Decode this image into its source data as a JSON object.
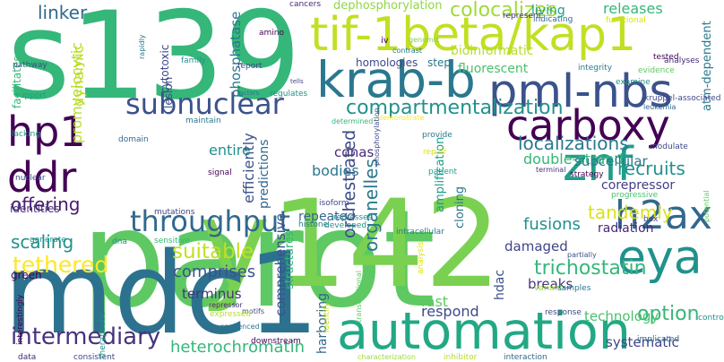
{
  "words": [
    {
      "text": "parot",
      "color": "#5ec962",
      "vertical": false
    },
    {
      "text": "s139",
      "color": "#35b779",
      "vertical": false
    },
    {
      "text": "y142",
      "color": "#7ad151",
      "vertical": false
    },
    {
      "text": "mdc1",
      "color": "#2c728e",
      "vertical": false
    },
    {
      "text": "tif-1beta/kap1",
      "color": "#c2df23",
      "vertical": false
    },
    {
      "text": "automation",
      "color": "#22a884",
      "vertical": false
    },
    {
      "text": "krab-b",
      "color": "#2a788e",
      "vertical": false
    },
    {
      "text": "pml-nbs",
      "color": "#3b528b",
      "vertical": false
    },
    {
      "text": "carboxy",
      "color": "#440154",
      "vertical": false
    },
    {
      "text": "znf",
      "color": "#1f9e89",
      "vertical": false
    },
    {
      "text": "eya",
      "color": "#21918c",
      "vertical": false
    },
    {
      "text": "h2ax",
      "color": "#31688e",
      "vertical": false
    },
    {
      "text": "hp1",
      "color": "#440154",
      "vertical": false
    },
    {
      "text": "ddr",
      "color": "#440154",
      "vertical": false
    },
    {
      "text": "throughput",
      "color": "#31688e",
      "vertical": false
    },
    {
      "text": "subnuclear",
      "color": "#3b528b",
      "vertical": false
    },
    {
      "text": "intermediary",
      "color": "#46337e",
      "vertical": false
    },
    {
      "text": "heterochromatin",
      "color": "#35b779",
      "vertical": false
    },
    {
      "text": "compartmentalization",
      "color": "#21918c",
      "vertical": false
    },
    {
      "text": "colocalizes",
      "color": "#9fda3a",
      "vertical": false
    },
    {
      "text": "linker",
      "color": "#31688e",
      "vertical": false
    },
    {
      "text": "dephosphorylation",
      "color": "#8fd744",
      "vertical": false
    },
    {
      "text": "living",
      "color": "#1f9e89",
      "vertical": false
    },
    {
      "text": "releases",
      "color": "#35b779",
      "vertical": false
    },
    {
      "text": "bioinformatic",
      "color": "#b5de2b",
      "vertical": false
    },
    {
      "text": "fluorescent",
      "color": "#4ac16d",
      "vertical": false
    },
    {
      "text": "homologies",
      "color": "#3e4989",
      "vertical": false
    },
    {
      "text": "step",
      "color": "#2a788e",
      "vertical": false
    },
    {
      "text": "localizations",
      "color": "#2a788e",
      "vertical": false
    },
    {
      "text": "double-strand",
      "color": "#35b779",
      "vertical": false
    },
    {
      "text": "subcellular",
      "color": "#2a788e",
      "vertical": false
    },
    {
      "text": "recruits",
      "color": "#21918c",
      "vertical": false
    },
    {
      "text": "corepressor",
      "color": "#433e85",
      "vertical": false
    },
    {
      "text": "tandemly",
      "color": "#d8e219",
      "vertical": false
    },
    {
      "text": "radiation",
      "color": "#482878",
      "vertical": false
    },
    {
      "text": "fusions",
      "color": "#21918c",
      "vertical": false
    },
    {
      "text": "trichostatin",
      "color": "#35b779",
      "vertical": false
    },
    {
      "text": "breaks",
      "color": "#46337e",
      "vertical": false
    },
    {
      "text": "option",
      "color": "#35b779",
      "vertical": false
    },
    {
      "text": "technology",
      "color": "#4ac16d",
      "vertical": false
    },
    {
      "text": "systematic",
      "color": "#414487",
      "vertical": false
    },
    {
      "text": "cdnas",
      "color": "#482878",
      "vertical": false
    },
    {
      "text": "bodies",
      "color": "#2a788e",
      "vertical": false
    },
    {
      "text": "fast",
      "color": "#5ec962",
      "vertical": false
    },
    {
      "text": "respond",
      "color": "#3e4989",
      "vertical": false
    },
    {
      "text": "damaged",
      "color": "#414487",
      "vertical": false
    },
    {
      "text": "suitable",
      "color": "#c2df23",
      "vertical": false
    },
    {
      "text": "comprises",
      "color": "#3b528b",
      "vertical": false
    },
    {
      "text": "terminus",
      "color": "#46337e",
      "vertical": false
    },
    {
      "text": "entire",
      "color": "#21918c",
      "vertical": false
    },
    {
      "text": "repeated",
      "color": "#31688e",
      "vertical": false
    },
    {
      "text": "offering",
      "color": "#481b6d",
      "vertical": false
    },
    {
      "text": "scaling",
      "color": "#21918c",
      "vertical": false
    },
    {
      "text": "tethered",
      "color": "#fde725",
      "vertical": false
    },
    {
      "text": "identities",
      "color": "#46337e",
      "vertical": false
    },
    {
      "text": "green",
      "color": "#440154",
      "vertical": false
    },
    {
      "text": "support",
      "color": "#1f9e89",
      "vertical": false
    },
    {
      "text": "dynamic",
      "color": "#c2df23",
      "vertical": true
    },
    {
      "text": "promyelocytic",
      "color": "#b5de2b",
      "vertical": true
    },
    {
      "text": "cytotoxic",
      "color": "#3e4989",
      "vertical": true
    },
    {
      "text": "lesion",
      "color": "#3b528b",
      "vertical": true
    },
    {
      "text": "phosphatase",
      "color": "#2a788e",
      "vertical": true
    },
    {
      "text": "facilitates",
      "color": "#35b779",
      "vertical": true
    },
    {
      "text": "efficiently",
      "color": "#3b528b",
      "vertical": true
    },
    {
      "text": "predictions",
      "color": "#31688e",
      "vertical": true
    },
    {
      "text": "orchestrated",
      "color": "#3e4989",
      "vertical": true
    },
    {
      "text": "organelles",
      "color": "#2a788e",
      "vertical": true
    },
    {
      "text": "amplification",
      "color": "#1f9e89",
      "vertical": true
    },
    {
      "text": "cloning",
      "color": "#2a788e",
      "vertical": true
    },
    {
      "text": "comprehensive",
      "color": "#3b528b",
      "vertical": true
    },
    {
      "text": "structures",
      "color": "#35b779",
      "vertical": true
    },
    {
      "text": "harboring",
      "color": "#31688e",
      "vertical": true
    },
    {
      "text": "hdac",
      "color": "#3b528b",
      "vertical": true
    },
    {
      "text": "atm-dependent",
      "color": "#2a788e",
      "vertical": true
    },
    {
      "text": "amino",
      "color": "#440154",
      "vertical": false
    },
    {
      "text": "cancers",
      "color": "#482878",
      "vertical": false
    },
    {
      "text": "genomic",
      "color": "#7ad151",
      "vertical": false
    },
    {
      "text": "represent",
      "color": "#46337e",
      "vertical": false
    },
    {
      "text": "indicating",
      "color": "#31688e",
      "vertical": false
    },
    {
      "text": "functional",
      "color": "#d8e219",
      "vertical": false
    },
    {
      "text": "tested",
      "color": "#440154",
      "vertical": false
    },
    {
      "text": "contrast",
      "color": "#2a788e",
      "vertical": false
    },
    {
      "text": "integrity",
      "color": "#2a788e",
      "vertical": false
    },
    {
      "text": "evidence",
      "color": "#5ec962",
      "vertical": false
    },
    {
      "text": "analyses",
      "color": "#482878",
      "vertical": false
    },
    {
      "text": "iv",
      "color": "#440154",
      "vertical": false
    },
    {
      "text": "family",
      "color": "#21918c",
      "vertical": false
    },
    {
      "text": "report",
      "color": "#3e4989",
      "vertical": false
    },
    {
      "text": "pathway",
      "color": "#3b528b",
      "vertical": false
    },
    {
      "text": "factors",
      "color": "#2a788e",
      "vertical": false
    },
    {
      "text": "regulates",
      "color": "#21918c",
      "vertical": false
    },
    {
      "text": "tells",
      "color": "#433e85",
      "vertical": false
    },
    {
      "text": "examine",
      "color": "#21918c",
      "vertical": false
    },
    {
      "text": "kruppel-associated",
      "color": "#3e4989",
      "vertical": false
    },
    {
      "text": "leukemia",
      "color": "#31688e",
      "vertical": false
    },
    {
      "text": "maintain",
      "color": "#2a788e",
      "vertical": false
    },
    {
      "text": "determined",
      "color": "#35b779",
      "vertical": false
    },
    {
      "text": "demonstrate",
      "color": "#fde725",
      "vertical": false
    },
    {
      "text": "lacking",
      "color": "#1f9e89",
      "vertical": false
    },
    {
      "text": "domain",
      "color": "#31688e",
      "vertical": false
    },
    {
      "text": "provide",
      "color": "#2a788e",
      "vertical": false
    },
    {
      "text": "repair",
      "color": "#d8e219",
      "vertical": false
    },
    {
      "text": "patient",
      "color": "#1f9e89",
      "vertical": false
    },
    {
      "text": "modulate",
      "color": "#3e4989",
      "vertical": false
    },
    {
      "text": "terminal",
      "color": "#46337e",
      "vertical": false
    },
    {
      "text": "strategy",
      "color": "#440154",
      "vertical": false
    },
    {
      "text": "progressive",
      "color": "#4ac16d",
      "vertical": false
    },
    {
      "text": "signal",
      "color": "#440154",
      "vertical": false
    },
    {
      "text": "isoform",
      "color": "#3e4989",
      "vertical": false
    },
    {
      "text": "represses",
      "color": "#21918c",
      "vertical": false
    },
    {
      "text": "developed",
      "color": "#21918c",
      "vertical": false
    },
    {
      "text": "mutations",
      "color": "#3e4989",
      "vertical": false
    },
    {
      "text": "sensitive",
      "color": "#35b779",
      "vertical": false
    },
    {
      "text": "histone",
      "color": "#2a788e",
      "vertical": false
    },
    {
      "text": "intracellular",
      "color": "#2a788e",
      "vertical": false
    },
    {
      "text": "box",
      "color": "#3e4989",
      "vertical": false
    },
    {
      "text": "generate",
      "color": "#21918c",
      "vertical": false
    },
    {
      "text": "dna",
      "color": "#21918c",
      "vertical": false
    },
    {
      "text": "partially",
      "color": "#3b528b",
      "vertical": false
    },
    {
      "text": "variant",
      "color": "#a0da39",
      "vertical": false
    },
    {
      "text": "samples",
      "color": "#2a788e",
      "vertical": false
    },
    {
      "text": "repressor",
      "color": "#482878",
      "vertical": false
    },
    {
      "text": "motifs",
      "color": "#3e4989",
      "vertical": false
    },
    {
      "text": "expressed",
      "color": "#b5de2b",
      "vertical": false
    },
    {
      "text": "response",
      "color": "#3e4989",
      "vertical": false
    },
    {
      "text": "controls",
      "color": "#21918c",
      "vertical": false
    },
    {
      "text": "sequenced",
      "color": "#2a788e",
      "vertical": false
    },
    {
      "text": "downstream",
      "color": "#440154",
      "vertical": false
    },
    {
      "text": "implicated",
      "color": "#31688e",
      "vertical": false
    },
    {
      "text": "data",
      "color": "#482878",
      "vertical": false
    },
    {
      "text": "consistent",
      "color": "#3e4989",
      "vertical": false
    },
    {
      "text": "characterization",
      "color": "#9fda3a",
      "vertical": false
    },
    {
      "text": "inhibitor",
      "color": "#b5de2b",
      "vertical": false
    },
    {
      "text": "interaction",
      "color": "#31688e",
      "vertical": false
    },
    {
      "text": "nuclear",
      "color": "#3e4989",
      "vertical": false
    },
    {
      "text": "rapidly",
      "color": "#2a788e",
      "vertical": true
    },
    {
      "text": "phosphorylation",
      "color": "#3e4989",
      "vertical": true
    },
    {
      "text": "potential",
      "color": "#5ec962",
      "vertical": true
    },
    {
      "text": "therapeutic",
      "color": "#21918c",
      "vertical": true
    },
    {
      "text": "interestingly",
      "color": "#440154",
      "vertical": true
    },
    {
      "text": "identify",
      "color": "#c2df23",
      "vertical": true
    },
    {
      "text": "analysis",
      "color": "#d8e219",
      "vertical": true
    },
    {
      "text": "transcriptional",
      "color": "#5ec962",
      "vertical": true
    },
    {
      "text": "activity",
      "color": "#d8e219",
      "vertical": true
    }
  ]
}
